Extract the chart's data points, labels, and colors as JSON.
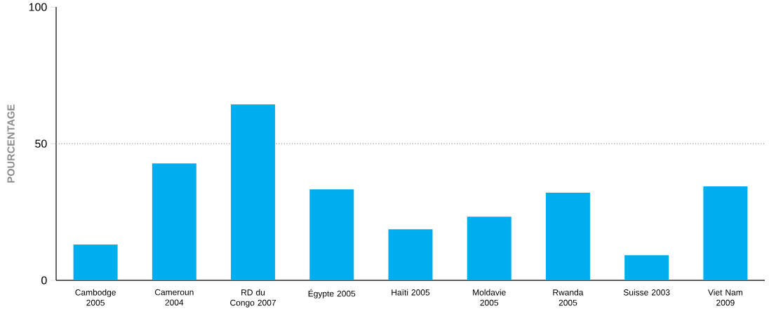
{
  "chart_data": {
    "type": "bar",
    "ylabel": "POURCENTAGE",
    "categories": [
      "Cambodge 2005",
      "Cameroun 2004",
      "RD du Congo 2007",
      "Égypte 2005",
      "Haïti 2005",
      "Moldavie 2005",
      "Rwanda 2005",
      "Suisse 2003",
      "Viet Nam 2009"
    ],
    "values": [
      13.1,
      42.8,
      64.4,
      33.3,
      18.7,
      23.3,
      32.1,
      9.2,
      34.4
    ],
    "color": "#00aeef",
    "ylim": [
      0,
      100
    ],
    "yticks": [
      0,
      50,
      100
    ],
    "grid": false,
    "ref_lines": [
      {
        "axis": "y",
        "value": 50,
        "color": "#8c8c8c",
        "line_style": "dotted"
      }
    ]
  }
}
